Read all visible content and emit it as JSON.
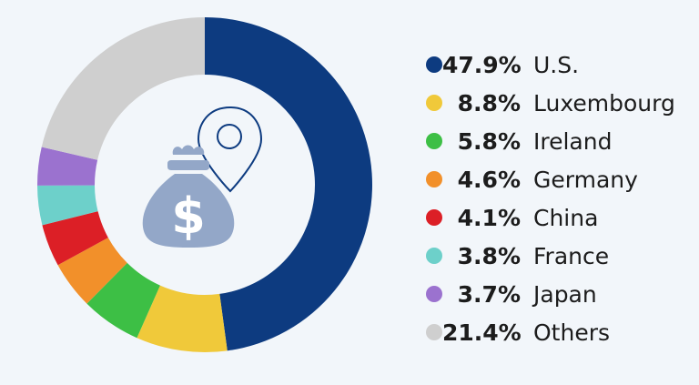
{
  "chart_data": {
    "type": "pie",
    "donut": true,
    "categories": [
      "U.S.",
      "Luxembourg",
      "Ireland",
      "Germany",
      "China",
      "France",
      "Japan",
      "Others"
    ],
    "values": [
      47.9,
      8.8,
      5.8,
      4.6,
      4.1,
      3.8,
      3.7,
      21.4
    ],
    "value_labels": [
      "47.9%",
      "8.8%",
      "5.8%",
      "4.6%",
      "4.1%",
      "3.8%",
      "3.7%",
      "21.4%"
    ],
    "unit": "%",
    "colors": [
      "#0d3b80",
      "#f0c93a",
      "#3dbf45",
      "#f2902a",
      "#dc1f26",
      "#6dd0ca",
      "#9b72cf",
      "#cfcfcf"
    ],
    "legend_position": "right",
    "center_icon": "money-bag-location-pin-icon",
    "title": "",
    "xlabel": "",
    "ylabel": ""
  }
}
